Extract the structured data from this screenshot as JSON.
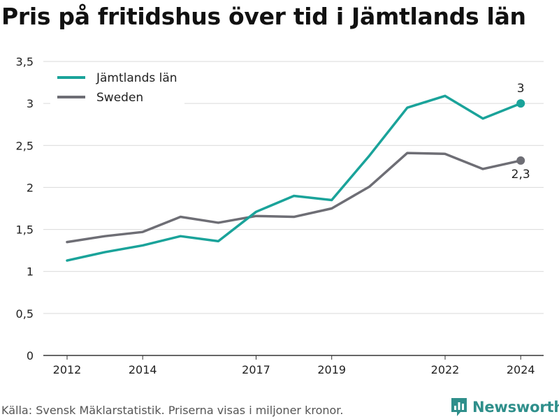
{
  "chart_data": {
    "type": "line",
    "title": "Pris på fritidshus över tid i Jämtlands län",
    "xlabel": "",
    "ylabel": "",
    "x": [
      2012,
      2013,
      2014,
      2015,
      2016,
      2017,
      2018,
      2019,
      2020,
      2021,
      2022,
      2023,
      2024
    ],
    "x_ticks": [
      "2012",
      "2014",
      "2017",
      "2019",
      "2022",
      "2024"
    ],
    "y_ticks": [
      "0",
      "0,5",
      "1",
      "1,5",
      "2",
      "2,5",
      "3",
      "3,5"
    ],
    "ylim": [
      0,
      3.5
    ],
    "grid": true,
    "legend_position": "top-left",
    "series": [
      {
        "name": "Jämtlands län",
        "color": "#1aa39a",
        "values": [
          1.13,
          1.23,
          1.31,
          1.42,
          1.36,
          1.71,
          1.9,
          1.85,
          2.38,
          2.95,
          3.09,
          2.82,
          3.0
        ],
        "end_label": "3"
      },
      {
        "name": "Sweden",
        "color": "#6e6e75",
        "values": [
          1.35,
          1.42,
          1.47,
          1.65,
          1.58,
          1.66,
          1.65,
          1.75,
          2.01,
          2.41,
          2.4,
          2.22,
          2.32
        ],
        "end_label": "2,3"
      }
    ]
  },
  "footer": {
    "source": "Källa: Svensk Mäklarstatistik. Priserna visas i miljoner kronor.",
    "brand": "Newsworthy",
    "brand_color": "#2f8f8b",
    "brand_icon": "bar-chart-icon"
  }
}
